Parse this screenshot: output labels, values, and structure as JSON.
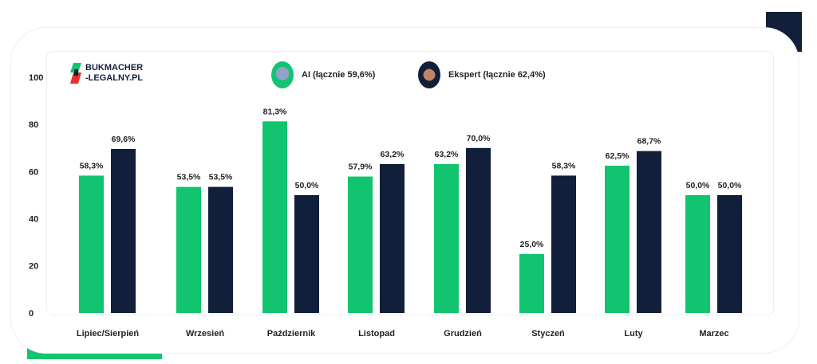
{
  "brand": {
    "line1": "BUKMACHER",
    "line2": "-LEGALNY.PL"
  },
  "colors": {
    "ai": "#12c46f",
    "expert": "#111f3b"
  },
  "chart_data": {
    "type": "bar",
    "categories": [
      "Lipiec/Sierpień",
      "Wrzesień",
      "Październik",
      "Listopad",
      "Grudzień",
      "Styczeń",
      "Luty",
      "Marzec"
    ],
    "series": [
      {
        "name": "AI (łącznie 59,6%)",
        "values": [
          58.3,
          53.5,
          81.3,
          57.9,
          63.2,
          25.0,
          62.5,
          50.0
        ],
        "labels": [
          "58,3%",
          "53,5%",
          "81,3%",
          "57,9%",
          "63,2%",
          "25,0%",
          "62,5%",
          "50,0%"
        ]
      },
      {
        "name": "Ekspert (łącznie 62,4%)",
        "values": [
          69.6,
          53.5,
          50.0,
          63.2,
          70.0,
          58.3,
          68.7,
          50.0
        ],
        "labels": [
          "69,6%",
          "53,5%",
          "50,0%",
          "63,2%",
          "70,0%",
          "58,3%",
          "68,7%",
          "50,0%"
        ]
      }
    ],
    "yticks": [
      "0",
      "20",
      "40",
      "60",
      "80",
      "100"
    ],
    "ylim": [
      0,
      100
    ],
    "grid": false,
    "legend_placement": "top"
  }
}
